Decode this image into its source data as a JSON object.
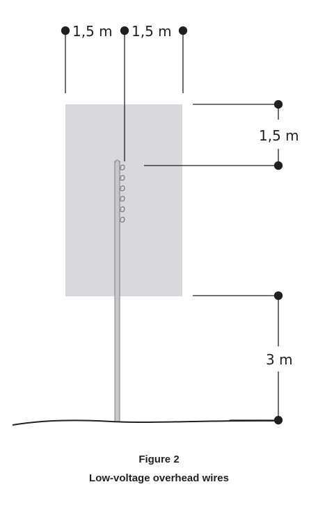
{
  "diagram": {
    "top_dimension_left": "1,5 m",
    "top_dimension_right": "1,5 m",
    "right_dimension_upper": "1,5 m",
    "right_dimension_lower": "3 m"
  },
  "caption": {
    "figure_label": "Figure 2",
    "title": "Low-voltage overhead wires"
  },
  "colors": {
    "zone_fill": "#d9d9db",
    "line": "#231f20",
    "pole_fill": "#c8c8ca",
    "pole_stroke": "#7d7d80"
  }
}
